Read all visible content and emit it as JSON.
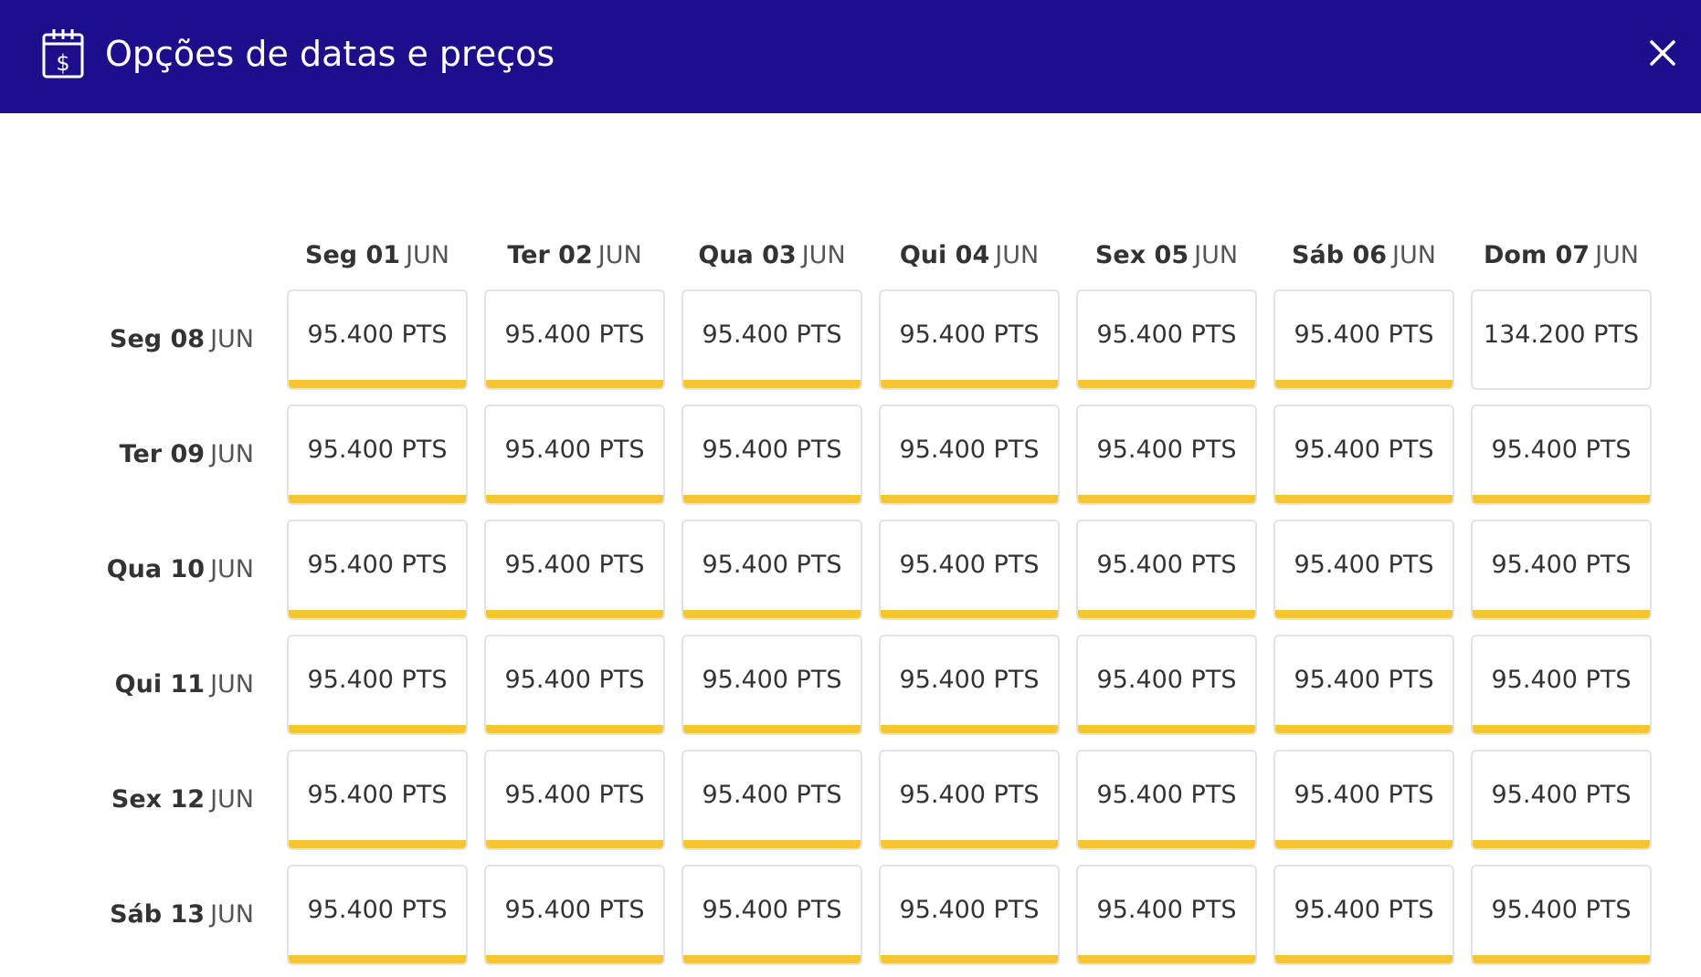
{
  "header": {
    "title": "Opções de datas e preços",
    "icon": "calendar-dollar-icon",
    "close_icon": "close-icon",
    "background": "#1d0f8c"
  },
  "colors": {
    "highlight_bar": "#f6c531",
    "cell_border": "#e3e3e3"
  },
  "columns": [
    {
      "day": "Seg 01",
      "month": "JUN"
    },
    {
      "day": "Ter 02",
      "month": "JUN"
    },
    {
      "day": "Qua 03",
      "month": "JUN"
    },
    {
      "day": "Qui 04",
      "month": "JUN"
    },
    {
      "day": "Sex 05",
      "month": "JUN"
    },
    {
      "day": "Sáb 06",
      "month": "JUN"
    },
    {
      "day": "Dom 07",
      "month": "JUN"
    }
  ],
  "rows": [
    {
      "day": "Seg 08",
      "month": "JUN",
      "cells": [
        {
          "price": "95.400 PTS",
          "highlight": true
        },
        {
          "price": "95.400 PTS",
          "highlight": true
        },
        {
          "price": "95.400 PTS",
          "highlight": true
        },
        {
          "price": "95.400 PTS",
          "highlight": true
        },
        {
          "price": "95.400 PTS",
          "highlight": true
        },
        {
          "price": "95.400 PTS",
          "highlight": true
        },
        {
          "price": "134.200 PTS",
          "highlight": false
        }
      ]
    },
    {
      "day": "Ter 09",
      "month": "JUN",
      "cells": [
        {
          "price": "95.400 PTS",
          "highlight": true
        },
        {
          "price": "95.400 PTS",
          "highlight": true
        },
        {
          "price": "95.400 PTS",
          "highlight": true
        },
        {
          "price": "95.400 PTS",
          "highlight": true
        },
        {
          "price": "95.400 PTS",
          "highlight": true
        },
        {
          "price": "95.400 PTS",
          "highlight": true
        },
        {
          "price": "95.400 PTS",
          "highlight": true
        }
      ]
    },
    {
      "day": "Qua 10",
      "month": "JUN",
      "cells": [
        {
          "price": "95.400 PTS",
          "highlight": true
        },
        {
          "price": "95.400 PTS",
          "highlight": true
        },
        {
          "price": "95.400 PTS",
          "highlight": true
        },
        {
          "price": "95.400 PTS",
          "highlight": true
        },
        {
          "price": "95.400 PTS",
          "highlight": true
        },
        {
          "price": "95.400 PTS",
          "highlight": true
        },
        {
          "price": "95.400 PTS",
          "highlight": true
        }
      ]
    },
    {
      "day": "Qui 11",
      "month": "JUN",
      "cells": [
        {
          "price": "95.400 PTS",
          "highlight": true
        },
        {
          "price": "95.400 PTS",
          "highlight": true
        },
        {
          "price": "95.400 PTS",
          "highlight": true
        },
        {
          "price": "95.400 PTS",
          "highlight": true
        },
        {
          "price": "95.400 PTS",
          "highlight": true
        },
        {
          "price": "95.400 PTS",
          "highlight": true
        },
        {
          "price": "95.400 PTS",
          "highlight": true
        }
      ]
    },
    {
      "day": "Sex 12",
      "month": "JUN",
      "cells": [
        {
          "price": "95.400 PTS",
          "highlight": true
        },
        {
          "price": "95.400 PTS",
          "highlight": true
        },
        {
          "price": "95.400 PTS",
          "highlight": true
        },
        {
          "price": "95.400 PTS",
          "highlight": true
        },
        {
          "price": "95.400 PTS",
          "highlight": true
        },
        {
          "price": "95.400 PTS",
          "highlight": true
        },
        {
          "price": "95.400 PTS",
          "highlight": true
        }
      ]
    },
    {
      "day": "Sáb 13",
      "month": "JUN",
      "cells": [
        {
          "price": "95.400 PTS",
          "highlight": true
        },
        {
          "price": "95.400 PTS",
          "highlight": true
        },
        {
          "price": "95.400 PTS",
          "highlight": true
        },
        {
          "price": "95.400 PTS",
          "highlight": true
        },
        {
          "price": "95.400 PTS",
          "highlight": true
        },
        {
          "price": "95.400 PTS",
          "highlight": true
        },
        {
          "price": "95.400 PTS",
          "highlight": true
        }
      ]
    }
  ]
}
